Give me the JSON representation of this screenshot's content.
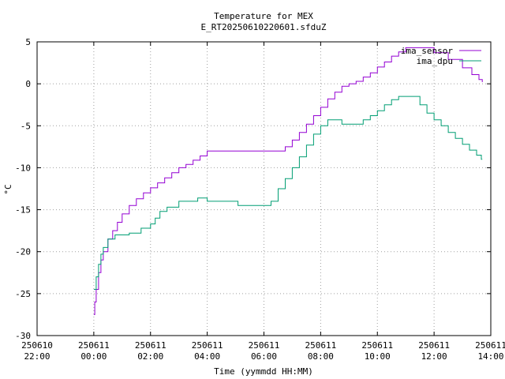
{
  "chart_data": {
    "type": "line",
    "title": "Temperature for MEX",
    "subtitle": "E_RT20250610220601.sfduZ",
    "xlabel": "Time (yymmdd HH:MM)",
    "ylabel": "°C",
    "xlim": [
      "2025-06-10 22:00",
      "2025-06-11 14:00"
    ],
    "ylim": [
      -30,
      5
    ],
    "grid": true,
    "legend_position": "top-right",
    "x_ticks": [
      {
        "t": "2025-06-10 22:00",
        "date": "250610",
        "time": "22:00"
      },
      {
        "t": "2025-06-11 00:00",
        "date": "250611",
        "time": "00:00"
      },
      {
        "t": "2025-06-11 02:00",
        "date": "250611",
        "time": "02:00"
      },
      {
        "t": "2025-06-11 04:00",
        "date": "250611",
        "time": "04:00"
      },
      {
        "t": "2025-06-11 06:00",
        "date": "250611",
        "time": "06:00"
      },
      {
        "t": "2025-06-11 08:00",
        "date": "250611",
        "time": "08:00"
      },
      {
        "t": "2025-06-11 10:00",
        "date": "250611",
        "time": "10:00"
      },
      {
        "t": "2025-06-11 12:00",
        "date": "250611",
        "time": "12:00"
      },
      {
        "t": "2025-06-11 14:00",
        "date": "250611",
        "time": "14:00"
      }
    ],
    "y_ticks": [
      -30,
      -25,
      -20,
      -15,
      -10,
      -5,
      0,
      5
    ],
    "series": [
      {
        "name": "ima_sensor",
        "color": "#9400d3",
        "step": true,
        "points": [
          [
            "2025-06-11 00:00",
            -27.5
          ],
          [
            "2025-06-11 00:02",
            -26.0
          ],
          [
            "2025-06-11 00:05",
            -24.5
          ],
          [
            "2025-06-11 00:10",
            -22.5
          ],
          [
            "2025-06-11 00:15",
            -21.0
          ],
          [
            "2025-06-11 00:20",
            -20.0
          ],
          [
            "2025-06-11 00:30",
            -18.5
          ],
          [
            "2025-06-11 00:40",
            -17.5
          ],
          [
            "2025-06-11 00:50",
            -16.5
          ],
          [
            "2025-06-11 01:00",
            -15.5
          ],
          [
            "2025-06-11 01:15",
            -14.5
          ],
          [
            "2025-06-11 01:30",
            -13.7
          ],
          [
            "2025-06-11 01:45",
            -13.0
          ],
          [
            "2025-06-11 02:00",
            -12.4
          ],
          [
            "2025-06-11 02:15",
            -11.8
          ],
          [
            "2025-06-11 02:30",
            -11.2
          ],
          [
            "2025-06-11 02:45",
            -10.6
          ],
          [
            "2025-06-11 03:00",
            -10.0
          ],
          [
            "2025-06-11 03:15",
            -9.6
          ],
          [
            "2025-06-11 03:30",
            -9.1
          ],
          [
            "2025-06-11 03:45",
            -8.6
          ],
          [
            "2025-06-11 04:00",
            -8.0
          ],
          [
            "2025-06-11 04:30",
            -8.0
          ],
          [
            "2025-06-11 05:00",
            -8.0
          ],
          [
            "2025-06-11 05:30",
            -8.0
          ],
          [
            "2025-06-11 06:00",
            -8.0
          ],
          [
            "2025-06-11 06:30",
            -8.0
          ],
          [
            "2025-06-11 06:45",
            -7.5
          ],
          [
            "2025-06-11 07:00",
            -6.7
          ],
          [
            "2025-06-11 07:15",
            -5.8
          ],
          [
            "2025-06-11 07:30",
            -4.8
          ],
          [
            "2025-06-11 07:45",
            -3.8
          ],
          [
            "2025-06-11 08:00",
            -2.8
          ],
          [
            "2025-06-11 08:15",
            -1.8
          ],
          [
            "2025-06-11 08:30",
            -1.0
          ],
          [
            "2025-06-11 08:45",
            -0.3
          ],
          [
            "2025-06-11 09:00",
            0.0
          ],
          [
            "2025-06-11 09:15",
            0.3
          ],
          [
            "2025-06-11 09:30",
            0.8
          ],
          [
            "2025-06-11 09:45",
            1.3
          ],
          [
            "2025-06-11 10:00",
            2.0
          ],
          [
            "2025-06-11 10:15",
            2.6
          ],
          [
            "2025-06-11 10:30",
            3.3
          ],
          [
            "2025-06-11 10:45",
            3.8
          ],
          [
            "2025-06-11 11:00",
            4.3
          ],
          [
            "2025-06-11 11:30",
            4.3
          ],
          [
            "2025-06-11 12:00",
            3.7
          ],
          [
            "2025-06-11 12:30",
            2.9
          ],
          [
            "2025-06-11 13:00",
            1.9
          ],
          [
            "2025-06-11 13:20",
            1.1
          ],
          [
            "2025-06-11 13:35",
            0.5
          ],
          [
            "2025-06-11 13:42",
            0.2
          ]
        ]
      },
      {
        "name": "ima_dpu",
        "color": "#009e73",
        "step": true,
        "points": [
          [
            "2025-06-11 00:00",
            -24.5
          ],
          [
            "2025-06-11 00:05",
            -23.0
          ],
          [
            "2025-06-11 00:10",
            -21.5
          ],
          [
            "2025-06-11 00:15",
            -20.3
          ],
          [
            "2025-06-11 00:20",
            -19.5
          ],
          [
            "2025-06-11 00:30",
            -18.5
          ],
          [
            "2025-06-11 00:45",
            -18.0
          ],
          [
            "2025-06-11 01:15",
            -17.8
          ],
          [
            "2025-06-11 01:40",
            -17.2
          ],
          [
            "2025-06-11 02:00",
            -16.7
          ],
          [
            "2025-06-11 02:10",
            -16.0
          ],
          [
            "2025-06-11 02:20",
            -15.2
          ],
          [
            "2025-06-11 02:35",
            -14.7
          ],
          [
            "2025-06-11 03:00",
            -14.0
          ],
          [
            "2025-06-11 03:30",
            -14.0
          ],
          [
            "2025-06-11 03:40",
            -13.6
          ],
          [
            "2025-06-11 04:00",
            -14.0
          ],
          [
            "2025-06-11 05:00",
            -14.0
          ],
          [
            "2025-06-11 05:05",
            -14.5
          ],
          [
            "2025-06-11 06:00",
            -14.5
          ],
          [
            "2025-06-11 06:15",
            -14.0
          ],
          [
            "2025-06-11 06:30",
            -12.5
          ],
          [
            "2025-06-11 06:45",
            -11.3
          ],
          [
            "2025-06-11 07:00",
            -10.0
          ],
          [
            "2025-06-11 07:15",
            -8.7
          ],
          [
            "2025-06-11 07:30",
            -7.3
          ],
          [
            "2025-06-11 07:45",
            -6.0
          ],
          [
            "2025-06-11 08:00",
            -5.0
          ],
          [
            "2025-06-11 08:15",
            -4.3
          ],
          [
            "2025-06-11 08:30",
            -4.3
          ],
          [
            "2025-06-11 08:45",
            -4.8
          ],
          [
            "2025-06-11 09:20",
            -4.8
          ],
          [
            "2025-06-11 09:30",
            -4.3
          ],
          [
            "2025-06-11 09:45",
            -3.8
          ],
          [
            "2025-06-11 10:00",
            -3.2
          ],
          [
            "2025-06-11 10:15",
            -2.5
          ],
          [
            "2025-06-11 10:30",
            -1.9
          ],
          [
            "2025-06-11 10:45",
            -1.5
          ],
          [
            "2025-06-11 11:15",
            -1.5
          ],
          [
            "2025-06-11 11:30",
            -2.5
          ],
          [
            "2025-06-11 11:45",
            -3.5
          ],
          [
            "2025-06-11 12:00",
            -4.3
          ],
          [
            "2025-06-11 12:15",
            -5.0
          ],
          [
            "2025-06-11 12:30",
            -5.8
          ],
          [
            "2025-06-11 12:45",
            -6.5
          ],
          [
            "2025-06-11 13:00",
            -7.2
          ],
          [
            "2025-06-11 13:15",
            -7.9
          ],
          [
            "2025-06-11 13:30",
            -8.5
          ],
          [
            "2025-06-11 13:40",
            -9.0
          ],
          [
            "2025-06-11 13:42",
            -9.0
          ]
        ]
      }
    ]
  }
}
